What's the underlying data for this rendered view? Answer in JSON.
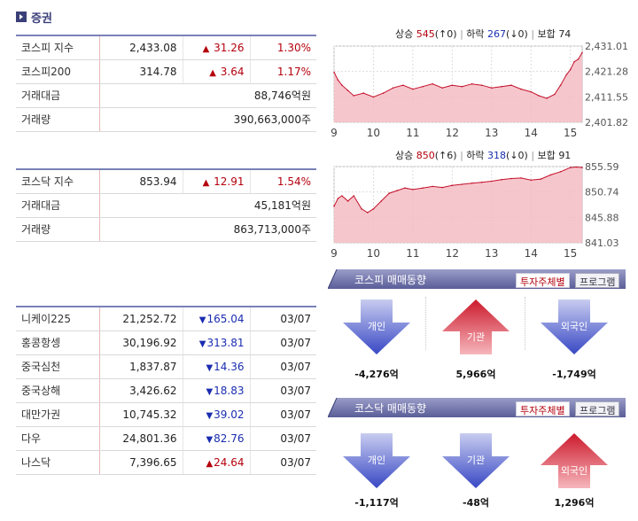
{
  "section": {
    "title": "증권"
  },
  "kospi_table": [
    {
      "name": "코스피 지수",
      "value": "2,433.08",
      "change": "31.26",
      "dir": "up",
      "pct": "1.30%"
    },
    {
      "name": "코스피200",
      "value": "314.78",
      "change": "3.64",
      "dir": "up",
      "pct": "1.17%"
    },
    {
      "name": "거래대금",
      "wide": "88,746억원"
    },
    {
      "name": "거래량",
      "wide": "390,663,000주"
    }
  ],
  "kosdaq_table": [
    {
      "name": "코스닥 지수",
      "value": "853.94",
      "change": "12.91",
      "dir": "up",
      "pct": "1.54%"
    },
    {
      "name": "거래대금",
      "wide": "45,181억원"
    },
    {
      "name": "거래량",
      "wide": "863,713,000주"
    }
  ],
  "world_table": [
    {
      "name": "니케이225",
      "value": "21,252.72",
      "change": "165.04",
      "dir": "down",
      "date": "03/07"
    },
    {
      "name": "홍콩항셍",
      "value": "30,196.92",
      "change": "313.81",
      "dir": "down",
      "date": "03/07"
    },
    {
      "name": "중국심천",
      "value": "1,837.87",
      "change": "14.36",
      "dir": "down",
      "date": "03/07"
    },
    {
      "name": "중국상해",
      "value": "3,426.62",
      "change": "18.83",
      "dir": "down",
      "date": "03/07"
    },
    {
      "name": "대만가권",
      "value": "10,745.32",
      "change": "39.02",
      "dir": "down",
      "date": "03/07"
    },
    {
      "name": "다우",
      "value": "24,801.36",
      "change": "82.76",
      "dir": "down",
      "date": "03/07"
    },
    {
      "name": "나스닥",
      "value": "7,396.65",
      "change": "24.64",
      "dir": "up",
      "date": "03/07"
    }
  ],
  "kospi_summary": {
    "up_label": "상승",
    "up": "545",
    "up_sym": "(↑0)",
    "down_label": "하락",
    "down": "267",
    "down_sym": "(↓0)",
    "flat_label": "보합",
    "flat": "74"
  },
  "kosdaq_summary": {
    "up_label": "상승",
    "up": "850",
    "up_sym": "(↑6)",
    "down_label": "하락",
    "down": "318",
    "down_sym": "(↓0)",
    "flat_label": "보합",
    "flat": "91"
  },
  "chart_data": [
    {
      "type": "area",
      "x_ticks": [
        "9",
        "10",
        "11",
        "12",
        "13",
        "14",
        "15"
      ],
      "y_ticks": [
        "2,431.01",
        "2,421.28",
        "2,411.55",
        "2,401.82"
      ],
      "ylim": [
        2401.82,
        2431.01
      ],
      "grid": true,
      "x": [
        9,
        9.1,
        9.2,
        9.35,
        9.5,
        9.75,
        10,
        10.25,
        10.5,
        10.75,
        11,
        11.25,
        11.5,
        11.75,
        12,
        12.25,
        12.5,
        12.75,
        13,
        13.25,
        13.5,
        13.75,
        14,
        14.2,
        14.4,
        14.6,
        14.75,
        14.9,
        15,
        15.1,
        15.2,
        15.3
      ],
      "values": [
        2421,
        2418,
        2416,
        2414,
        2412,
        2413,
        2411.5,
        2413,
        2415,
        2416,
        2414.5,
        2415.5,
        2416.5,
        2415,
        2416,
        2415.5,
        2416.5,
        2416,
        2415,
        2415.5,
        2416,
        2414.5,
        2413.5,
        2412,
        2411,
        2412.5,
        2416,
        2420,
        2422,
        2425,
        2426,
        2428.5
      ],
      "colors": {
        "line": "#c4122a",
        "fill": "#f5bcc4"
      }
    },
    {
      "type": "area",
      "x_ticks": [
        "9",
        "10",
        "11",
        "12",
        "13",
        "14",
        "15"
      ],
      "y_ticks": [
        "855.59",
        "850.74",
        "845.88",
        "841.03"
      ],
      "ylim": [
        841.03,
        855.59
      ],
      "grid": true,
      "x": [
        9,
        9.1,
        9.2,
        9.35,
        9.5,
        9.7,
        9.85,
        10,
        10.2,
        10.4,
        10.6,
        10.8,
        11,
        11.25,
        11.5,
        11.75,
        12,
        12.25,
        12.5,
        12.75,
        13,
        13.25,
        13.5,
        13.75,
        14,
        14.25,
        14.5,
        14.75,
        15,
        15.15,
        15.3
      ],
      "values": [
        848,
        849.5,
        850,
        849,
        850,
        847.5,
        846.8,
        847.5,
        849,
        850.5,
        851,
        851.5,
        851.2,
        851.5,
        851.8,
        851.6,
        852,
        852.2,
        852.4,
        852.6,
        852.8,
        853.1,
        853.3,
        853.4,
        853,
        853.2,
        854,
        854.6,
        855.4,
        855.5,
        855.4
      ],
      "colors": {
        "line": "#c4122a",
        "fill": "#f5bcc4"
      }
    }
  ],
  "kospi_flow": {
    "title": "코스피 매매동향",
    "tabs": [
      "투자주체별",
      "프로그램"
    ],
    "items": [
      {
        "label": "개인",
        "dir": "down",
        "value": "-4,276억"
      },
      {
        "label": "기관",
        "dir": "up",
        "value": "5,966억"
      },
      {
        "label": "외국인",
        "dir": "down",
        "value": "-1,749억"
      }
    ]
  },
  "kosdaq_flow": {
    "title": "코스닥 매매동향",
    "tabs": [
      "투자주체별",
      "프로그램"
    ],
    "items": [
      {
        "label": "개인",
        "dir": "down",
        "value": "-1,117억"
      },
      {
        "label": "기관",
        "dir": "down",
        "value": "-48억"
      },
      {
        "label": "외국인",
        "dir": "up",
        "value": "1,296억"
      }
    ]
  },
  "colors": {
    "up": "#b3000c",
    "down": "#1a2db0",
    "accent": "#3a3f78"
  }
}
